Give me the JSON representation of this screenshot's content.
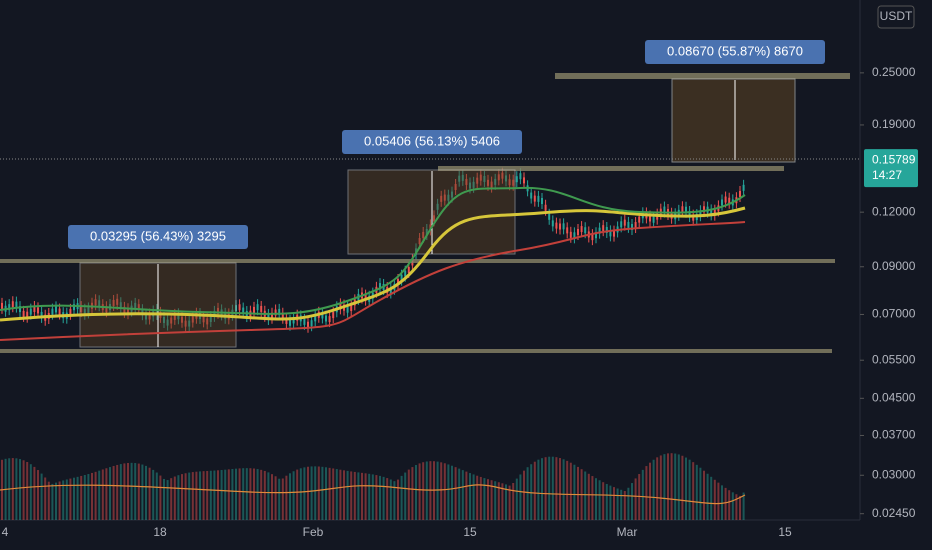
{
  "chart_data": {
    "type": "candlestick",
    "log_scale": true,
    "ylim": [
      0.0237,
      0.367
    ],
    "yticks": [
      {
        "value": 0.25,
        "label": "0.25000"
      },
      {
        "value": 0.19,
        "label": "0.19000"
      },
      {
        "value": 0.12,
        "label": "0.12000"
      },
      {
        "value": 0.09,
        "label": "0.09000"
      },
      {
        "value": 0.07,
        "label": "0.07000"
      },
      {
        "value": 0.055,
        "label": "0.05500"
      },
      {
        "value": 0.045,
        "label": "0.04500"
      },
      {
        "value": 0.037,
        "label": "0.03700"
      },
      {
        "value": 0.03,
        "label": "0.03000"
      },
      {
        "value": 0.0245,
        "label": "0.02450"
      }
    ],
    "currency": "USDT",
    "last_price": {
      "value": 0.15789,
      "label": "0.15789"
    },
    "countdown": "14:27",
    "x_labels": [
      "4",
      "18",
      "Feb",
      "15",
      "Mar",
      "15"
    ],
    "measures": [
      "0.03295 (56.43%) 3295",
      "0.05406 (56.13%) 5406",
      "0.08670 (55.87%) 8670"
    ]
  }
}
